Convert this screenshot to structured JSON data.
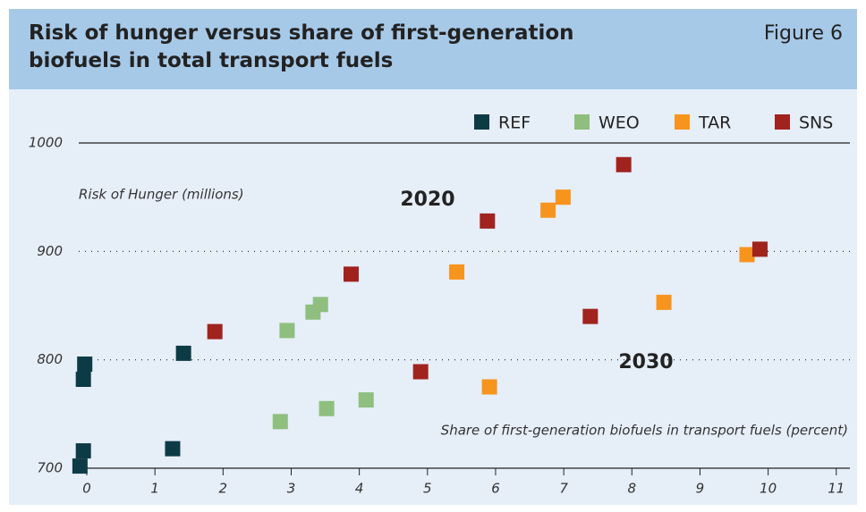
{
  "chart_data": {
    "type": "scatter",
    "title": "Risk of hunger versus share of first-generation biofuels in total transport fuels",
    "figure_label": "Figure 6",
    "ylabel": "Risk of Hunger (millions)",
    "xlabel": "Share of first-generation biofuels in transport fuels (percent)",
    "annotations": [
      "2020",
      "2030"
    ],
    "xlim": [
      -0.12,
      11.2
    ],
    "ylim": [
      700,
      1000
    ],
    "xticks": [
      0,
      1,
      2,
      3,
      4,
      5,
      6,
      7,
      8,
      9,
      10,
      11
    ],
    "yticks": [
      700,
      800,
      900,
      1000
    ],
    "series": [
      {
        "name": "REF",
        "color": "#0d3b45",
        "x": [
          -0.05,
          -0.03,
          1.42,
          -0.05,
          -0.1,
          1.26
        ],
        "values": [
          782,
          796,
          806,
          716,
          702,
          718
        ]
      },
      {
        "name": "WEO",
        "color": "#8fbf7f",
        "x": [
          2.94,
          3.32,
          3.43,
          2.84,
          3.52,
          4.1
        ],
        "values": [
          827,
          844,
          851,
          743,
          755,
          763
        ]
      },
      {
        "name": "TAR",
        "color": "#f7941d",
        "x": [
          5.43,
          6.77,
          6.99,
          9.69,
          5.91,
          8.47
        ],
        "values": [
          881,
          938,
          950,
          897,
          775,
          853
        ]
      },
      {
        "name": "SNS",
        "color": "#a0231e",
        "x": [
          1.88,
          3.88,
          5.88,
          7.88,
          9.88,
          4.9,
          7.39
        ],
        "values": [
          826,
          879,
          928,
          980,
          902,
          789,
          840
        ]
      }
    ]
  }
}
